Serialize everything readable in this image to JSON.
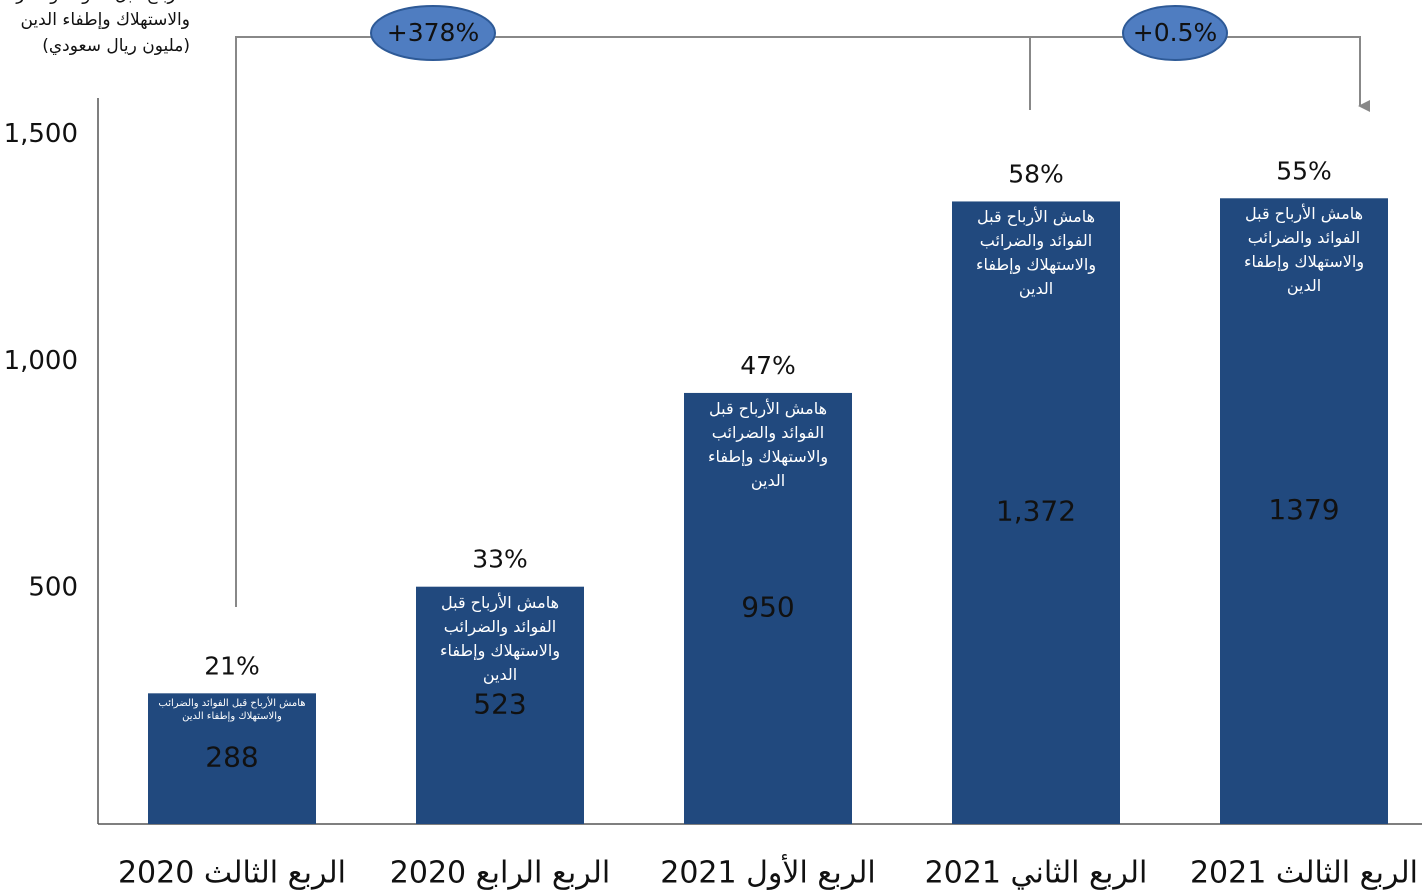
{
  "chart_data": {
    "type": "bar",
    "ylabel": "الأرباح قبل الفوائد والضرائب والاستهلاك وإطفاء الدين (مليون ريال سعودي)",
    "categories": [
      "الربع الثالث 2020",
      "الربع الرابع 2020",
      "الربع الأول 2021",
      "الربع الثاني 2021",
      "الربع الثالث 2021"
    ],
    "values": [
      288,
      523,
      950,
      1372,
      1379
    ],
    "value_labels": [
      "288",
      "523",
      "950",
      "1,372",
      "1379"
    ],
    "bar_label": "هامش الأرباح قبل الفوائد والضرائب والاستهلاك وإطفاء الدين",
    "margins": [
      21,
      33,
      47,
      58,
      55
    ],
    "margin_labels": [
      "21%",
      "33%",
      "47%",
      "58%",
      "55%"
    ],
    "annotations": [
      "+378%",
      "+0.5%"
    ],
    "color": "#21497e",
    "ylim": [
      0,
      1600
    ],
    "yticks": [
      500,
      {
        "value": 1000,
        "label": "1,000"
      },
      {
        "value": 1500,
        "label": "1,500"
      }
    ],
    "grid": false
  }
}
